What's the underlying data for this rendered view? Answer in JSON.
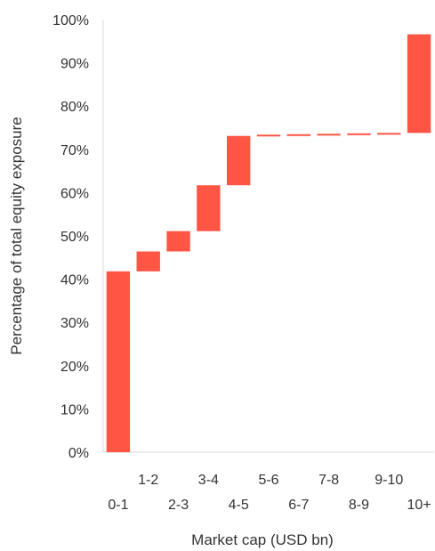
{
  "chart_data": {
    "type": "waterfall",
    "title": "",
    "xlabel": "Market cap (USD bn)",
    "ylabel": "Percentage of total equity exposure",
    "categories": [
      "0-1",
      "1-2",
      "2-3",
      "3-4",
      "4-5",
      "5-6",
      "6-7",
      "7-8",
      "8-9",
      "9-10",
      "10+"
    ],
    "increments": [
      41.8,
      4.6,
      4.7,
      10.6,
      11.4,
      0.3,
      0.1,
      0.1,
      0.1,
      0.1,
      22.8
    ],
    "ylim": [
      0,
      100
    ],
    "yticks": [
      "0%",
      "10%",
      "20%",
      "30%",
      "40%",
      "50%",
      "60%",
      "70%",
      "80%",
      "90%",
      "100%"
    ],
    "grid": false,
    "legend": "none",
    "bar_color": "#ff5544"
  }
}
